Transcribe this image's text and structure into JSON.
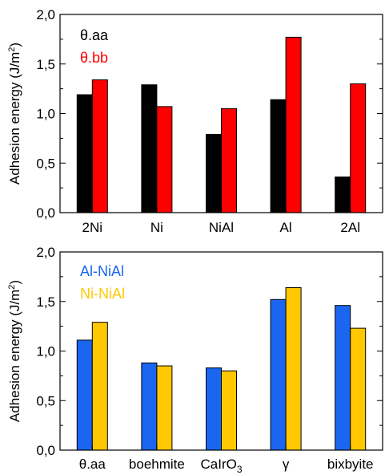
{
  "chart_data": [
    {
      "type": "bar",
      "ylabel": "Adhesion energy (J/m²)",
      "ylim": [
        0,
        2
      ],
      "yticks": [
        "0,0",
        "0,5",
        "1,0",
        "1,5",
        "2,0"
      ],
      "categories": [
        "2Ni",
        "Ni",
        "NiAl",
        "Al",
        "2Al"
      ],
      "series": [
        {
          "name": "θ.aa",
          "color": "#000000",
          "values": [
            1.19,
            1.29,
            0.79,
            1.14,
            0.36
          ]
        },
        {
          "name": "θ.bb",
          "color": "#ff0000",
          "values": [
            1.34,
            1.07,
            1.05,
            1.77,
            1.3
          ]
        }
      ],
      "legend_position": "top-left",
      "grid": false
    },
    {
      "type": "bar",
      "ylabel": "Adhesion energy (J/m²)",
      "ylim": [
        0,
        2
      ],
      "yticks": [
        "0,0",
        "0,5",
        "1,0",
        "1,5",
        "2,0"
      ],
      "categories": [
        "θ.aa",
        "boehmite",
        "CaIrO3",
        "γ",
        "bixbyite"
      ],
      "series": [
        {
          "name": "Al-NiAl",
          "color": "#1a66f0",
          "values": [
            1.11,
            0.88,
            0.83,
            1.52,
            1.46
          ]
        },
        {
          "name": "Ni-NiAl",
          "color": "#ffc800",
          "values": [
            1.29,
            0.85,
            0.8,
            1.64,
            1.23
          ]
        }
      ],
      "legend_position": "top-left",
      "grid": false
    }
  ]
}
